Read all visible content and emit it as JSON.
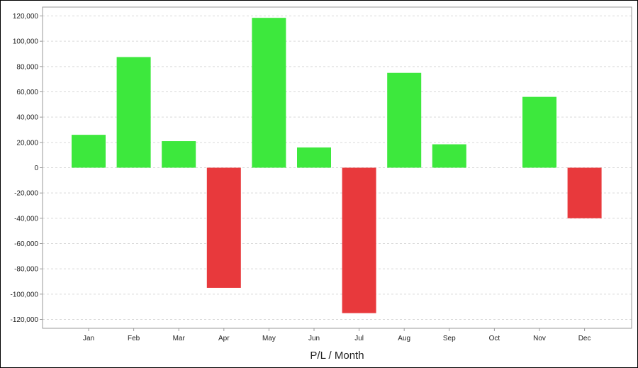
{
  "chart_data": {
    "type": "bar",
    "title": "",
    "xlabel": "P/L / Month",
    "ylabel": "",
    "categories": [
      "Jan",
      "Feb",
      "Mar",
      "Apr",
      "May",
      "Jun",
      "Jul",
      "Aug",
      "Sep",
      "Oct",
      "Nov",
      "Dec"
    ],
    "values": [
      26000,
      87500,
      21000,
      -95000,
      118500,
      16000,
      -115000,
      75000,
      18500,
      0,
      56000,
      -40000
    ],
    "ylim": [
      -127000,
      127000
    ],
    "yticks": [
      120000,
      100000,
      80000,
      60000,
      40000,
      20000,
      0,
      -20000,
      -40000,
      -60000,
      -80000,
      -100000,
      -120000
    ],
    "ytick_labels": [
      "120,000",
      "100,000",
      "80,000",
      "60,000",
      "40,000",
      "20,000",
      "0",
      "-20,000",
      "-40,000",
      "-60,000",
      "-80,000",
      "-100,000",
      "-120,000"
    ],
    "grid": true,
    "colors": {
      "positive": "#3de83d",
      "negative": "#e8393c",
      "grid": "#d9d9d9",
      "axis": "#999999"
    }
  }
}
